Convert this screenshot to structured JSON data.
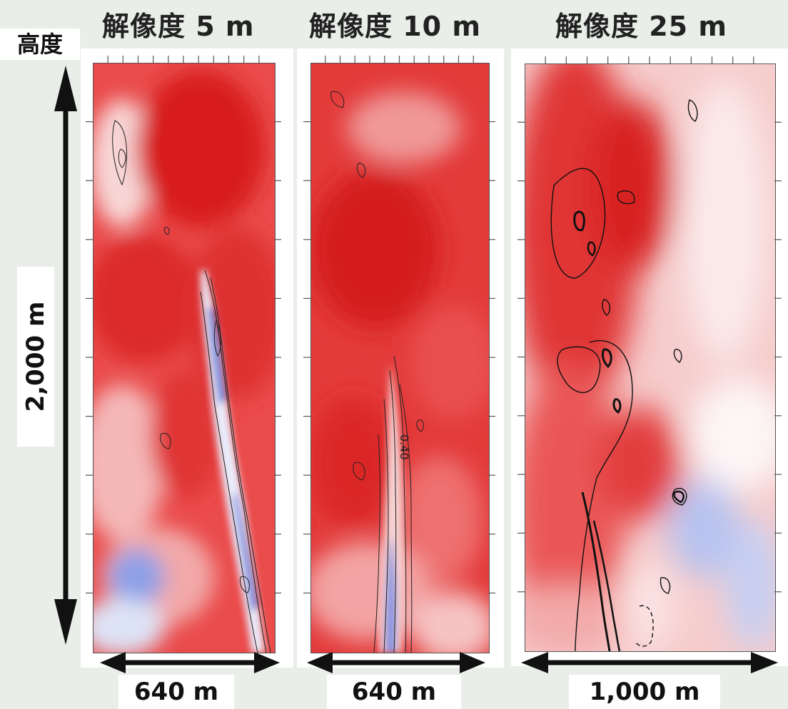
{
  "titles": {
    "panel1": "解像度 5 m",
    "panel2": "解像度 10 m",
    "panel3": "解像度 25 m"
  },
  "vertical_axis": {
    "label": "高度",
    "extent": "2,000 m"
  },
  "horizontal_extents": {
    "panel1": "640 m",
    "panel2": "640 m",
    "panel3": "1,000 m"
  },
  "contour_label": "0.40",
  "colors": {
    "background": "#e9eee9",
    "positive": "#e02020",
    "negative": "#5a6fd6",
    "contour": "#111111"
  }
}
